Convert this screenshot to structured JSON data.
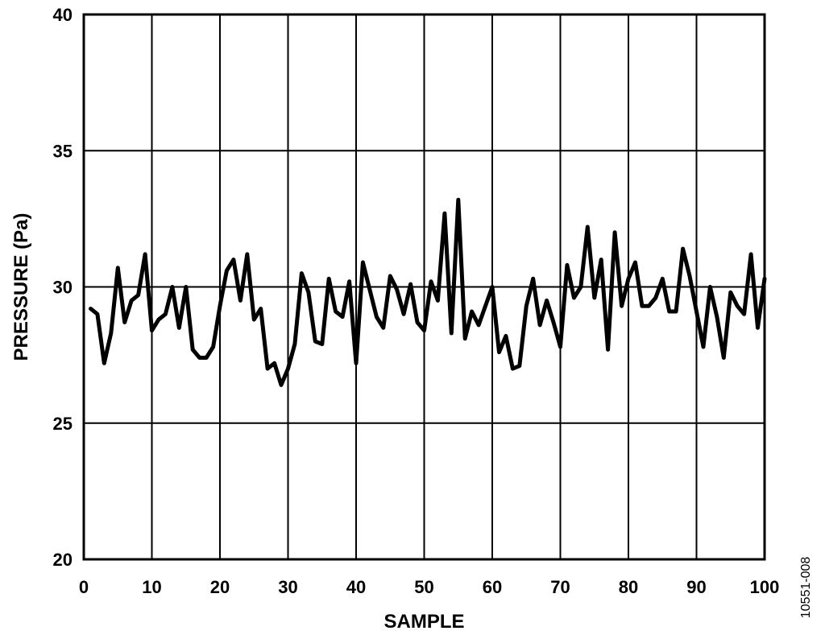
{
  "figure_id": "10551-008",
  "chart_data": {
    "type": "line",
    "xlabel": "SAMPLE",
    "ylabel": "PRESSURE (Pa)",
    "xlim": [
      0,
      100
    ],
    "ylim": [
      20,
      40
    ],
    "x_ticks": [
      0,
      10,
      20,
      30,
      40,
      50,
      60,
      70,
      80,
      90,
      100
    ],
    "y_ticks": [
      20,
      25,
      30,
      35,
      40
    ],
    "grid": true,
    "line_color": "#000000",
    "series": [
      {
        "x": [
          1,
          2,
          3,
          4,
          5,
          6,
          7,
          8,
          9,
          10,
          11,
          12,
          13,
          14,
          15,
          16,
          17,
          18,
          19,
          20,
          21,
          22,
          23,
          24,
          25,
          26,
          27,
          28,
          29,
          30,
          31,
          32,
          33,
          34,
          35,
          36,
          37,
          38,
          39,
          40,
          41,
          42,
          43,
          44,
          45,
          46,
          47,
          48,
          49,
          50,
          51,
          52,
          53,
          54,
          55,
          56,
          57,
          58,
          59,
          60,
          61,
          62,
          63,
          64,
          65,
          66,
          67,
          68,
          69,
          70,
          71,
          72,
          73,
          74,
          75,
          76,
          77,
          78,
          79,
          80,
          81,
          82,
          83,
          84,
          85,
          86,
          87,
          88,
          89,
          90,
          91,
          92,
          93,
          94,
          95,
          96,
          97,
          98,
          99,
          100
        ],
        "values": [
          29.2,
          29.0,
          27.2,
          28.3,
          30.7,
          28.7,
          29.5,
          29.7,
          31.2,
          28.4,
          28.8,
          29.0,
          30.0,
          28.5,
          30.0,
          27.7,
          27.4,
          27.4,
          27.8,
          29.3,
          30.6,
          31.0,
          29.5,
          31.2,
          28.8,
          29.2,
          27.0,
          27.2,
          26.4,
          27.0,
          27.9,
          30.5,
          29.8,
          28.0,
          27.9,
          30.3,
          29.1,
          28.9,
          30.2,
          27.2,
          30.9,
          29.9,
          28.9,
          28.5,
          30.4,
          29.9,
          29.0,
          30.1,
          28.7,
          28.4,
          30.2,
          29.5,
          32.7,
          28.3,
          33.2,
          28.1,
          29.1,
          28.6,
          29.3,
          30.0,
          27.6,
          28.2,
          27.0,
          27.1,
          29.3,
          30.3,
          28.6,
          29.5,
          28.7,
          27.8,
          30.8,
          29.6,
          30.0,
          32.2,
          29.6,
          31.0,
          27.7,
          32.0,
          29.3,
          30.3,
          30.9,
          29.3,
          29.3,
          29.6,
          30.3,
          29.1,
          29.1,
          31.4,
          30.4,
          29.1,
          27.8,
          30.0,
          28.9,
          27.4,
          29.8,
          29.3,
          29.0,
          31.2,
          28.5,
          30.3
        ]
      }
    ]
  }
}
